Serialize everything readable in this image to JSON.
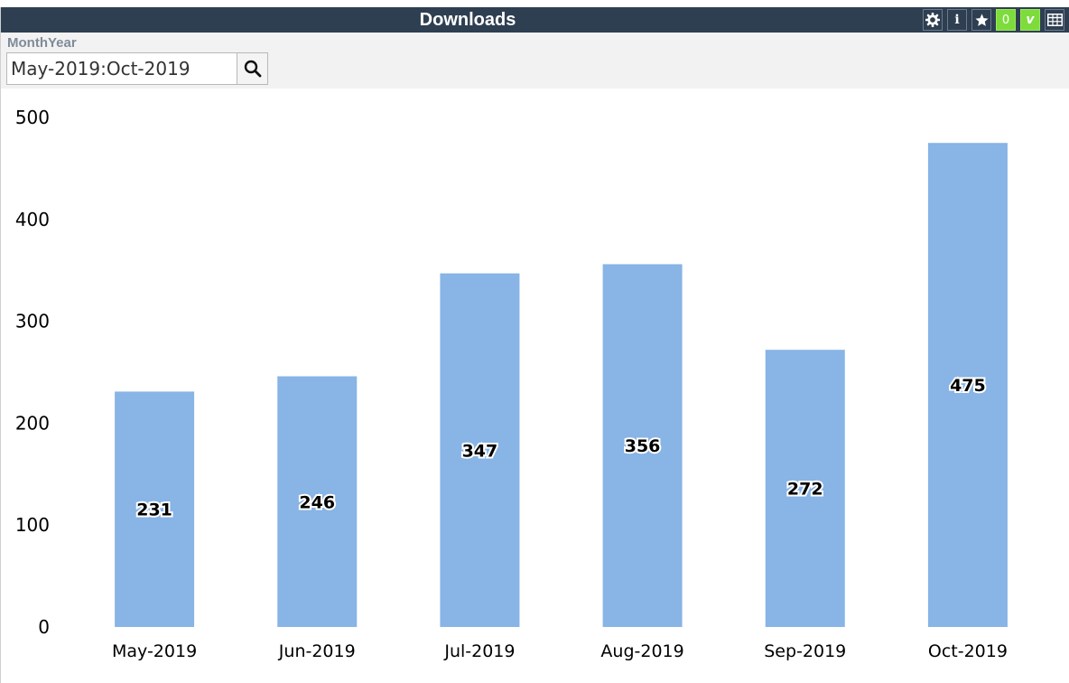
{
  "window": {
    "title": "Downloads",
    "toolbar_icons": [
      "gear-icon",
      "info-icon",
      "star-icon",
      "zero-icon",
      "v-icon",
      "table-icon"
    ],
    "zero_label": "0",
    "v_label": "v",
    "info_label": "i",
    "accent_green": "#7ddc3c",
    "titlebar_color": "#2f3f52"
  },
  "filter": {
    "label": "MonthYear",
    "value": "May-2019:Oct-2019"
  },
  "chart_data": {
    "type": "bar",
    "categories": [
      "May-2019",
      "Jun-2019",
      "Jul-2019",
      "Aug-2019",
      "Sep-2019",
      "Oct-2019"
    ],
    "values": [
      231,
      246,
      347,
      356,
      272,
      475
    ],
    "data_labels": [
      "231",
      "246",
      "347",
      "356",
      "272",
      "475"
    ],
    "yticks": [
      "0",
      "100",
      "200",
      "300",
      "400",
      "500"
    ],
    "ylim": [
      0,
      500
    ],
    "bar_color": "#88b4e6",
    "grid": false,
    "legend": "none"
  }
}
